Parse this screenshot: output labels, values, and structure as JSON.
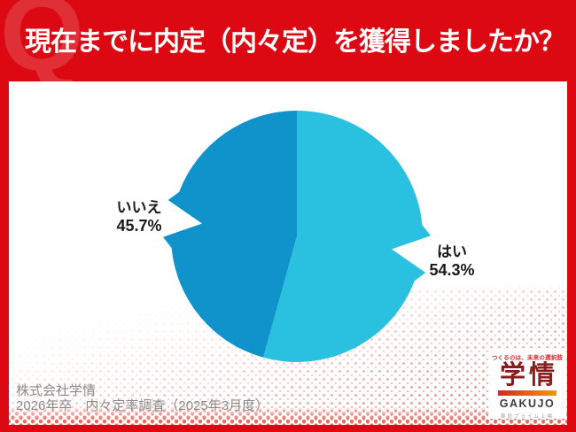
{
  "header": {
    "watermark": "Q",
    "title": "現在までに内定（内々定）を獲得しましたか？"
  },
  "chart_data": {
    "type": "pie",
    "title": "現在までに内定（内々定）を獲得しましたか？",
    "unit": "%",
    "start_angle_deg": 0,
    "direction": "clockwise",
    "label_position": "outside",
    "notch_style": "arrow-cut-toward-label",
    "slices": [
      {
        "key": "yes",
        "label": "はい",
        "value": 54.3,
        "display": "54.3%",
        "color": "#2ac0e0"
      },
      {
        "key": "no",
        "label": "いいえ",
        "value": 45.7,
        "display": "45.7%",
        "color": "#0f93ca"
      }
    ]
  },
  "footer": {
    "source_company": "株式会社学情",
    "source_survey": "2026年卒　内々定率調査（2025年3月度）"
  },
  "logo": {
    "tagline": "つくるのは、未来の選択肢",
    "name_jp": "学情",
    "name_en": "GAKUJO",
    "listing": "東証プライム上場"
  },
  "colors": {
    "background_red": "#dc0812",
    "card_white": "#ffffff",
    "pie_yes": "#2ac0e0",
    "pie_no": "#0f93ca",
    "label_text": "#1a1a1a",
    "source_text": "#8a8a8a",
    "halftone_pink": "#ee8d85",
    "logo_red": "#c9161f",
    "logo_orange": "#f39800"
  }
}
